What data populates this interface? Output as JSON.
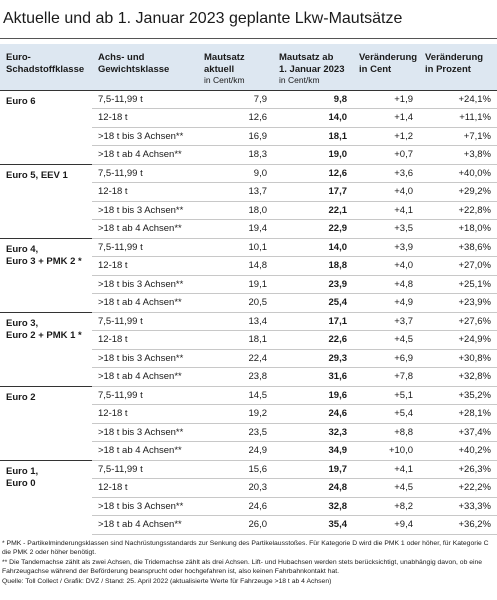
{
  "title": "Aktuelle und ab 1. Januar 2023 geplante Lkw-Mautsätze",
  "table": {
    "header": [
      {
        "lines": [
          "Euro-",
          "Schadstoffklasse"
        ]
      },
      {
        "lines": [
          "Achs- und",
          "Gewichtsklasse"
        ]
      },
      {
        "lines": [
          "Mautsatz",
          "aktuell"
        ],
        "unit": "in Cent/km"
      },
      {
        "lines": [
          "Mautsatz ab",
          "1. Januar 2023"
        ],
        "unit": "in Cent/km"
      },
      {
        "lines": [
          "Veränderung",
          "in Cent"
        ]
      },
      {
        "lines": [
          "Veränderung",
          "in Prozent"
        ]
      }
    ],
    "groups": [
      {
        "label": [
          "Euro 6"
        ],
        "rows": [
          [
            "7,5-11,99 t",
            "7,9",
            "9,8",
            "+1,9",
            "+24,1%"
          ],
          [
            "12-18 t",
            "12,6",
            "14,0",
            "+1,4",
            "+11,1%"
          ],
          [
            ">18 t bis 3 Achsen**",
            "16,9",
            "18,1",
            "+1,2",
            "+7,1%"
          ],
          [
            ">18 t ab 4 Achsen**",
            "18,3",
            "19,0",
            "+0,7",
            "+3,8%"
          ]
        ]
      },
      {
        "label": [
          "Euro 5, EEV 1"
        ],
        "rows": [
          [
            "7,5-11,99 t",
            "9,0",
            "12,6",
            "+3,6",
            "+40,0%"
          ],
          [
            "12-18 t",
            "13,7",
            "17,7",
            "+4,0",
            "+29,2%"
          ],
          [
            ">18 t bis 3 Achsen**",
            "18,0",
            "22,1",
            "+4,1",
            "+22,8%"
          ],
          [
            ">18 t ab 4 Achsen**",
            "19,4",
            "22,9",
            "+3,5",
            "+18,0%"
          ]
        ]
      },
      {
        "label": [
          "Euro 4,",
          "Euro 3 + PMK 2 *"
        ],
        "rows": [
          [
            "7,5-11,99 t",
            "10,1",
            "14,0",
            "+3,9",
            "+38,6%"
          ],
          [
            "12-18 t",
            "14,8",
            "18,8",
            "+4,0",
            "+27,0%"
          ],
          [
            ">18 t bis 3 Achsen**",
            "19,1",
            "23,9",
            "+4,8",
            "+25,1%"
          ],
          [
            ">18 t ab 4 Achsen**",
            "20,5",
            "25,4",
            "+4,9",
            "+23,9%"
          ]
        ]
      },
      {
        "label": [
          "Euro 3,",
          "Euro 2 + PMK 1 *"
        ],
        "rows": [
          [
            "7,5-11,99 t",
            "13,4",
            "17,1",
            "+3,7",
            "+27,6%"
          ],
          [
            "12-18 t",
            "18,1",
            "22,6",
            "+4,5",
            "+24,9%"
          ],
          [
            ">18 t bis 3 Achsen**",
            "22,4",
            "29,3",
            "+6,9",
            "+30,8%"
          ],
          [
            ">18 t ab 4 Achsen**",
            "23,8",
            "31,6",
            "+7,8",
            "+32,8%"
          ]
        ]
      },
      {
        "label": [
          "Euro 2"
        ],
        "rows": [
          [
            "7,5-11,99 t",
            "14,5",
            "19,6",
            "+5,1",
            "+35,2%"
          ],
          [
            "12-18 t",
            "19,2",
            "24,6",
            "+5,4",
            "+28,1%"
          ],
          [
            ">18 t bis 3 Achsen**",
            "23,5",
            "32,3",
            "+8,8",
            "+37,4%"
          ],
          [
            ">18 t ab 4 Achsen**",
            "24,9",
            "34,9",
            "+10,0",
            "+40,2%"
          ]
        ]
      },
      {
        "label": [
          "Euro 1,",
          "Euro 0"
        ],
        "rows": [
          [
            "7,5-11,99 t",
            "15,6",
            "19,7",
            "+4,1",
            "+26,3%"
          ],
          [
            "12-18 t",
            "20,3",
            "24,8",
            "+4,5",
            "+22,2%"
          ],
          [
            ">18 t bis 3 Achsen**",
            "24,6",
            "32,8",
            "+8,2",
            "+33,3%"
          ],
          [
            ">18 t ab 4 Achsen**",
            "26,0",
            "35,4",
            "+9,4",
            "+36,2%"
          ]
        ]
      }
    ]
  },
  "footnotes": [
    "* PMK - Partikelminderungsklassen sind Nachrüstungsstandards zur Senkung des Partikelausstoßes. Für Kategorie D wird die PMK 1 oder höher, für Kategorie C die PMK 2 oder höher benötigt.",
    "** Die Tandemachse zählt als zwei Achsen, die Tridemachse zählt als drei Achsen. Lift- und Hubachsen werden stets berücksichtigt, unabhängig davon, ob eine Fahrzeugachse während der Beförderung beansprucht oder hochgefahren ist, also keinen Fahrbahnkontakt hat.",
    "Quelle: Toll Collect / Grafik: DVZ / Stand: 25. April 2022 (aktualisierte Werte für Fahrzeuge >18 t ab 4 Achsen)"
  ]
}
